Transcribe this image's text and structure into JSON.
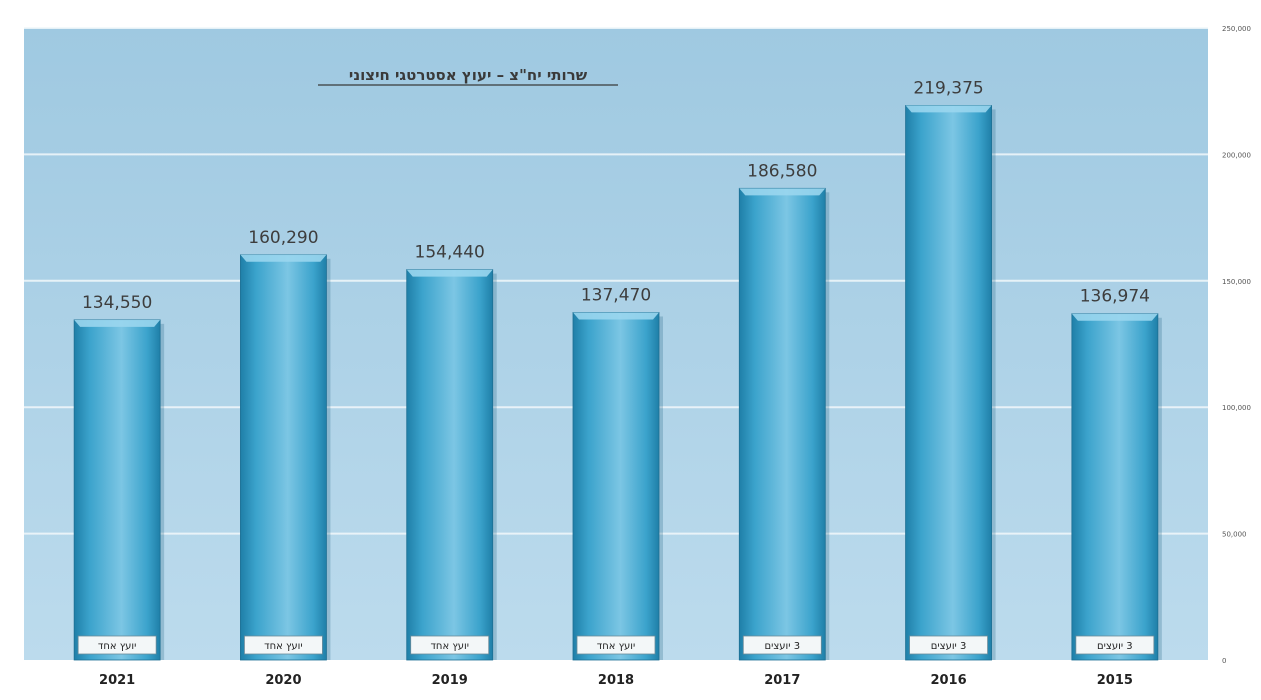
{
  "chart_data": {
    "type": "bar",
    "title": "שרותי יח\"צ – יעוץ אסטרטגי חיצוני",
    "categories": [
      "2021",
      "2020",
      "2019",
      "2018",
      "2017",
      "2016",
      "2015"
    ],
    "values": [
      134550,
      160290,
      154440,
      137470,
      186580,
      219375,
      136974
    ],
    "value_labels": [
      "134,550",
      "160,290",
      "154,440",
      "137,470",
      "186,580",
      "219,375",
      "136,974"
    ],
    "bar_notes": [
      "יועץ אחד",
      "יועץ אחד",
      "יועץ אחד",
      "יועץ אחד",
      "3 יועצים",
      "3 יועצים",
      "3 יועצים"
    ],
    "ylim": [
      0,
      250000
    ],
    "y_ticks": [
      0,
      50000,
      100000,
      150000,
      200000,
      250000
    ],
    "y_tick_labels": [
      "0",
      "50,000",
      "100,000",
      "150,000",
      "200,000",
      "250,000"
    ],
    "y_axis_side": "right",
    "grid": true,
    "xlabel": "",
    "ylabel": "",
    "colors": {
      "plot_bg": "#a9d0e6",
      "bar_fill": "#3ba3cc",
      "bar_light": "#7cc6e4",
      "bar_dark": "#1f7fa8",
      "grid": "#f2f8fb"
    }
  }
}
